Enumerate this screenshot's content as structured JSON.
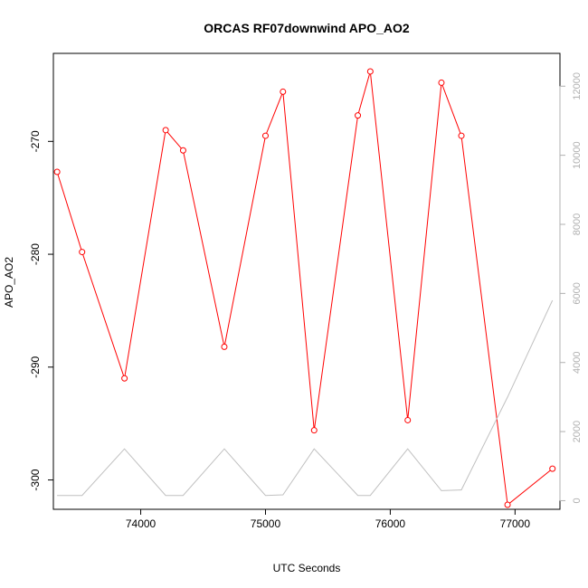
{
  "chart_data": {
    "type": "line",
    "title": "ORCAS RF07downwind APO_AO2",
    "xlabel": "UTC Seconds",
    "ylabel": "APO_AO2",
    "xlim": [
      73300,
      77360
    ],
    "ylim": [
      -302.6,
      -262.2
    ],
    "y2lim": [
      -250,
      12950
    ],
    "x_ticks": [
      74000,
      75000,
      76000,
      77000
    ],
    "y_ticks": [
      -270,
      -280,
      -290,
      -300
    ],
    "y2_ticks": [
      0,
      2000,
      4000,
      6000,
      8000,
      10000,
      12000
    ],
    "grid": false,
    "series": [
      {
        "color": "#ff0000",
        "axis": "left",
        "markers": true,
        "x": [
          73330,
          73530,
          73870,
          74200,
          74340,
          74670,
          75000,
          75140,
          75390,
          75740,
          75840,
          76140,
          76410,
          76570,
          76940,
          77300
        ],
        "y": [
          -272.7,
          -279.8,
          -291.0,
          -269.0,
          -270.8,
          -288.2,
          -269.5,
          -265.6,
          -295.6,
          -267.7,
          -263.8,
          -294.7,
          -264.8,
          -269.5,
          -302.2,
          -299.0
        ]
      },
      {
        "color": "#c0c0c0",
        "axis": "right",
        "markers": false,
        "x": [
          73330,
          73530,
          73870,
          74200,
          74340,
          74670,
          75000,
          75140,
          75390,
          75740,
          75840,
          76140,
          76410,
          76570,
          76940,
          77300
        ],
        "y": [
          150,
          150,
          1500,
          150,
          150,
          1500,
          150,
          170,
          1500,
          150,
          150,
          1500,
          290,
          310,
          3000,
          5800
        ]
      }
    ]
  }
}
